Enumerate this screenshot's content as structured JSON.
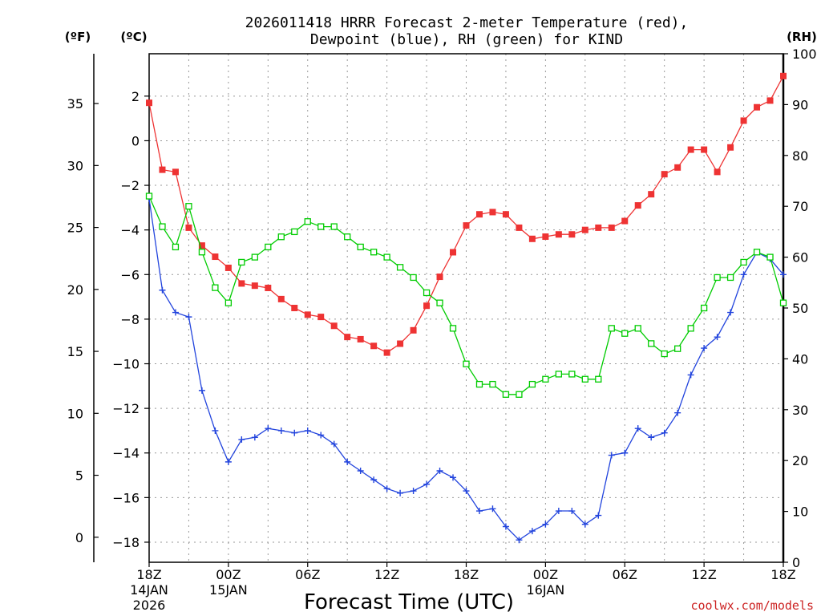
{
  "chart_data": {
    "type": "line",
    "title": "2026011418 HRRR Forecast 2-meter Temperature (red),",
    "subtitle": "Dewpoint (blue), RH (green) for KIND",
    "xlabel": "Forecast Time (UTC)",
    "credit": "coolwx.com/models",
    "units": {
      "fahrenheit": "(ºF)",
      "celsius": "(ºC)",
      "rh": "(RH)"
    },
    "hours": [
      0,
      1,
      2,
      3,
      4,
      5,
      6,
      7,
      8,
      9,
      10,
      11,
      12,
      13,
      14,
      15,
      16,
      17,
      18,
      19,
      20,
      21,
      22,
      23,
      24,
      25,
      26,
      27,
      28,
      29,
      30,
      31,
      32,
      33,
      34,
      35,
      36,
      37,
      38,
      39,
      40,
      41,
      42,
      43,
      44,
      45,
      46,
      47,
      48
    ],
    "x_ticks": [
      {
        "hour": 0,
        "label": "18Z",
        "label2": "14JAN",
        "label3": "2026"
      },
      {
        "hour": 6,
        "label": "00Z",
        "label2": "15JAN",
        "label3": ""
      },
      {
        "hour": 12,
        "label": "06Z",
        "label2": "",
        "label3": ""
      },
      {
        "hour": 18,
        "label": "12Z",
        "label2": "",
        "label3": ""
      },
      {
        "hour": 24,
        "label": "18Z",
        "label2": "",
        "label3": ""
      },
      {
        "hour": 30,
        "label": "00Z",
        "label2": "16JAN",
        "label3": ""
      },
      {
        "hour": 36,
        "label": "06Z",
        "label2": "",
        "label3": ""
      },
      {
        "hour": 42,
        "label": "12Z",
        "label2": "",
        "label3": ""
      },
      {
        "hour": 48,
        "label": "18Z",
        "label2": "",
        "label3": ""
      }
    ],
    "celsius_ticks": [
      "2",
      "0",
      "−2",
      "−4",
      "−6",
      "−8",
      "−10",
      "−12",
      "−14",
      "−16",
      "−18"
    ],
    "celsius_tick_values": [
      2,
      0,
      -2,
      -4,
      -6,
      -8,
      -10,
      -12,
      -14,
      -16,
      -18
    ],
    "fahrenheit_ticks": [
      "35",
      "30",
      "25",
      "20",
      "15",
      "10",
      "5",
      "0"
    ],
    "fahrenheit_tick_values": [
      35,
      30,
      25,
      20,
      15,
      10,
      5,
      0
    ],
    "rh_ticks": [
      "100",
      "90",
      "80",
      "70",
      "60",
      "50",
      "40",
      "30",
      "20",
      "10",
      "0"
    ],
    "rh_tick_values": [
      100,
      90,
      80,
      70,
      60,
      50,
      40,
      30,
      20,
      10,
      0
    ],
    "ylim_celsius": [
      -18.9,
      3.9
    ],
    "ylim_rh": [
      0,
      100
    ],
    "colors": {
      "temperature": "#ee3333",
      "dewpoint": "#2244dd",
      "rh": "#00cc00",
      "grid": "#999999"
    },
    "series": [
      {
        "name": "Temperature",
        "unit": "C",
        "values": [
          1.7,
          -1.3,
          -1.4,
          -3.9,
          -4.7,
          -5.2,
          -5.7,
          -6.4,
          -6.5,
          -6.6,
          -7.1,
          -7.5,
          -7.8,
          -7.9,
          -8.3,
          -8.8,
          -8.9,
          -9.2,
          -9.5,
          -9.1,
          -8.5,
          -7.4,
          -6.1,
          -5.0,
          -3.8,
          -3.3,
          -3.2,
          -3.3,
          -3.9,
          -4.4,
          -4.3,
          -4.2,
          -4.2,
          -4.0,
          -3.9,
          -3.9,
          -3.6,
          -2.9,
          -2.4,
          -1.5,
          -1.2,
          -0.4,
          -0.4,
          -1.4,
          -0.3,
          0.9,
          1.5,
          1.8,
          2.9
        ]
      },
      {
        "name": "Dewpoint",
        "unit": "C",
        "values": [
          -2.6,
          -6.7,
          -7.7,
          -7.9,
          -11.2,
          -13.0,
          -14.4,
          -13.4,
          -13.3,
          -12.9,
          -13.0,
          -13.1,
          -13.0,
          -13.2,
          -13.6,
          -14.4,
          -14.8,
          -15.2,
          -15.6,
          -15.8,
          -15.7,
          -15.4,
          -14.8,
          -15.1,
          -15.7,
          -16.6,
          -16.5,
          -17.3,
          -17.9,
          -17.5,
          -17.2,
          -16.6,
          -16.6,
          -17.2,
          -16.8,
          -14.1,
          -14.0,
          -12.9,
          -13.3,
          -13.1,
          -12.2,
          -10.5,
          -9.3,
          -8.8,
          -7.7,
          -6.0,
          -5.0,
          -5.3,
          -6.0
        ]
      },
      {
        "name": "RH",
        "unit": "%",
        "values": [
          72,
          66,
          62,
          70,
          61,
          54,
          51,
          59,
          60,
          62,
          64,
          65,
          67,
          66,
          66,
          64,
          62,
          61,
          60,
          58,
          56,
          53,
          51,
          46,
          39,
          35,
          35,
          33,
          33,
          35,
          36,
          37,
          37,
          36,
          36,
          46,
          45,
          46,
          43,
          41,
          42,
          46,
          50,
          56,
          56,
          59,
          61,
          60,
          51
        ]
      }
    ]
  }
}
